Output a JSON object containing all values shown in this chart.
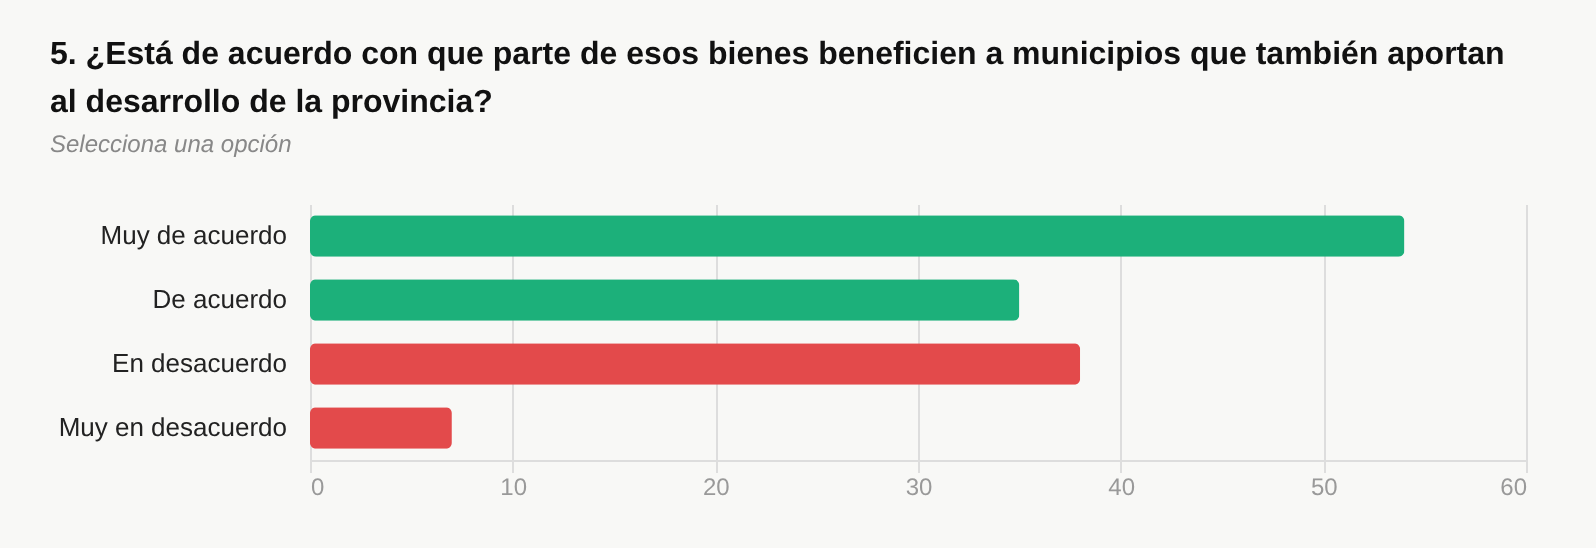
{
  "chart_data": {
    "type": "bar",
    "orientation": "horizontal",
    "title": "5. ¿Está de acuerdo con que parte de esos bienes beneficien a municipios que también aportan al desarrollo de la provincia?",
    "subtitle": "Selecciona una opción",
    "categories": [
      "Muy de acuerdo",
      "De acuerdo",
      "En desacuerdo",
      "Muy en desacuerdo"
    ],
    "values": [
      54,
      35,
      38,
      7
    ],
    "colors": [
      "#1cb07a",
      "#1cb07a",
      "#e34a4b",
      "#e34a4b"
    ],
    "xlim": [
      0,
      60
    ],
    "xticks": [
      0,
      10,
      20,
      30,
      40,
      50,
      60
    ],
    "grid": "x"
  }
}
